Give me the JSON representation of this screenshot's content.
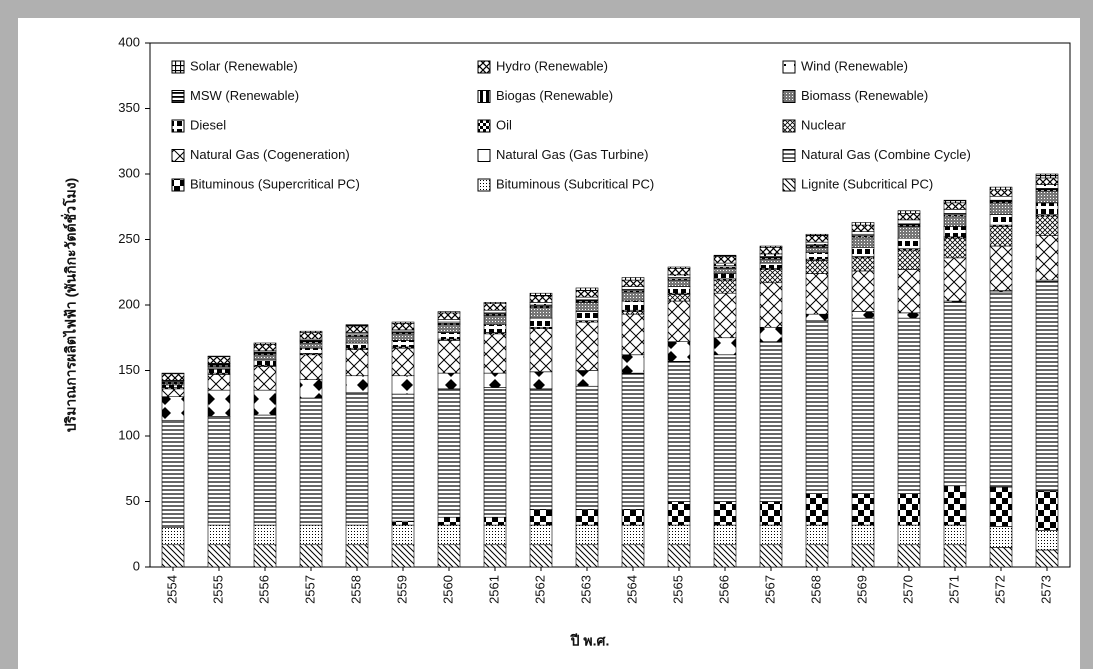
{
  "chart_data": {
    "type": "stacked_bar",
    "x_label": "ปี พ.ศ.",
    "y_label": "ปริมาณการผลิตไฟฟ้า (พันกิกะวัตต์ชั่วโมง)",
    "categories": [
      "2554",
      "2555",
      "2556",
      "2557",
      "2558",
      "2559",
      "2560",
      "2561",
      "2562",
      "2563",
      "2564",
      "2565",
      "2566",
      "2567",
      "2568",
      "2569",
      "2570",
      "2571",
      "2572",
      "2573"
    ],
    "ylim": [
      0,
      400
    ],
    "yticks": [
      0,
      50,
      100,
      150,
      200,
      250,
      300,
      350,
      400
    ],
    "series": [
      {
        "name": "Lignite (Subcritical PC)",
        "color": "#000000",
        "values": [
          17,
          17,
          17,
          17,
          17,
          17,
          17,
          17,
          17,
          17,
          17,
          17,
          17,
          17,
          17,
          17,
          17,
          17,
          15,
          13
        ]
      },
      {
        "name": "Bituminous (Subcritical PC)",
        "color": "#000000",
        "values": [
          13,
          15,
          15,
          15,
          15,
          15,
          15,
          15,
          15,
          15,
          15,
          15,
          15,
          15,
          15,
          15,
          15,
          15,
          16,
          15
        ]
      },
      {
        "name": "Bituminous (Supercritical PC)",
        "color": "#000000",
        "values": [
          0,
          0,
          0,
          0,
          0,
          3,
          6,
          6,
          12,
          12,
          12,
          18,
          18,
          18,
          24,
          24,
          24,
          30,
          30,
          30
        ]
      },
      {
        "name": "Natural Gas (Combine Cycle)",
        "color": "#000000",
        "values": [
          82,
          83,
          84,
          97,
          101,
          97,
          98,
          99,
          92,
          94,
          104,
          107,
          112,
          122,
          132,
          134,
          134,
          140,
          149,
          160
        ]
      },
      {
        "name": "Natural Gas (Gas Turbine)",
        "color": "#000000",
        "values": [
          18,
          20,
          19,
          14,
          13,
          14,
          12,
          11,
          13,
          12,
          14,
          15,
          13,
          11,
          5,
          5,
          4,
          1,
          1,
          1
        ]
      },
      {
        "name": "Natural Gas (Cogeneration)",
        "color": "#000000",
        "values": [
          6,
          12,
          18,
          19,
          20,
          21,
          25,
          30,
          33,
          37,
          31,
          31,
          34,
          34,
          31,
          31,
          33,
          33,
          34,
          34
        ]
      },
      {
        "name": "Nuclear",
        "color": "#000000",
        "values": [
          0,
          0,
          0,
          0,
          0,
          0,
          0,
          0,
          0,
          0,
          2,
          5,
          10,
          10,
          10,
          10,
          15,
          15,
          15,
          15
        ]
      },
      {
        "name": "Oil",
        "color": "#000000",
        "values": [
          1,
          1,
          1,
          1,
          1,
          1,
          1,
          1,
          1,
          1,
          1,
          1,
          1,
          1,
          1,
          1,
          1,
          1,
          1,
          1
        ]
      },
      {
        "name": "Diesel",
        "color": "#000000",
        "values": [
          2,
          3,
          4,
          4,
          4,
          5,
          5,
          6,
          7,
          7,
          7,
          5,
          4,
          4,
          5,
          7,
          8,
          8,
          8,
          9
        ]
      },
      {
        "name": "Biomass (Renewable)",
        "color": "#000000",
        "values": [
          1,
          2,
          4,
          4,
          5,
          5,
          6,
          7,
          8,
          7,
          7,
          5,
          4,
          3,
          4,
          8,
          9,
          8,
          9,
          9
        ]
      },
      {
        "name": "Biogas (Renewable)",
        "color": "#000000",
        "values": [
          1,
          1,
          1,
          1,
          1,
          1,
          1,
          1,
          1,
          1,
          1,
          1,
          1,
          1,
          1,
          1,
          1,
          1,
          1,
          1
        ]
      },
      {
        "name": "MSW (Renewable)",
        "color": "#000000",
        "values": [
          1,
          1,
          1,
          1,
          1,
          1,
          1,
          1,
          1,
          1,
          1,
          1,
          1,
          1,
          1,
          1,
          1,
          1,
          1,
          1
        ]
      },
      {
        "name": "Wind (Renewable)",
        "color": "#000000",
        "values": [
          0.5,
          0.5,
          1,
          1,
          1,
          1,
          2,
          2,
          2,
          2,
          2,
          2,
          2,
          2,
          2,
          2,
          3,
          3,
          3,
          3
        ]
      },
      {
        "name": "Hydro (Renewable)",
        "color": "#000000",
        "values": [
          5,
          5,
          5,
          5,
          5,
          5,
          5,
          5,
          5,
          5,
          5,
          5,
          5,
          5,
          5,
          5,
          5,
          5,
          5,
          5
        ]
      },
      {
        "name": "Solar (Renewable)",
        "color": "#000000",
        "values": [
          0.5,
          0.5,
          1,
          1,
          1,
          1,
          1,
          1,
          2,
          2,
          2,
          1,
          1,
          1,
          1,
          2,
          2,
          2,
          2,
          3
        ]
      }
    ]
  }
}
